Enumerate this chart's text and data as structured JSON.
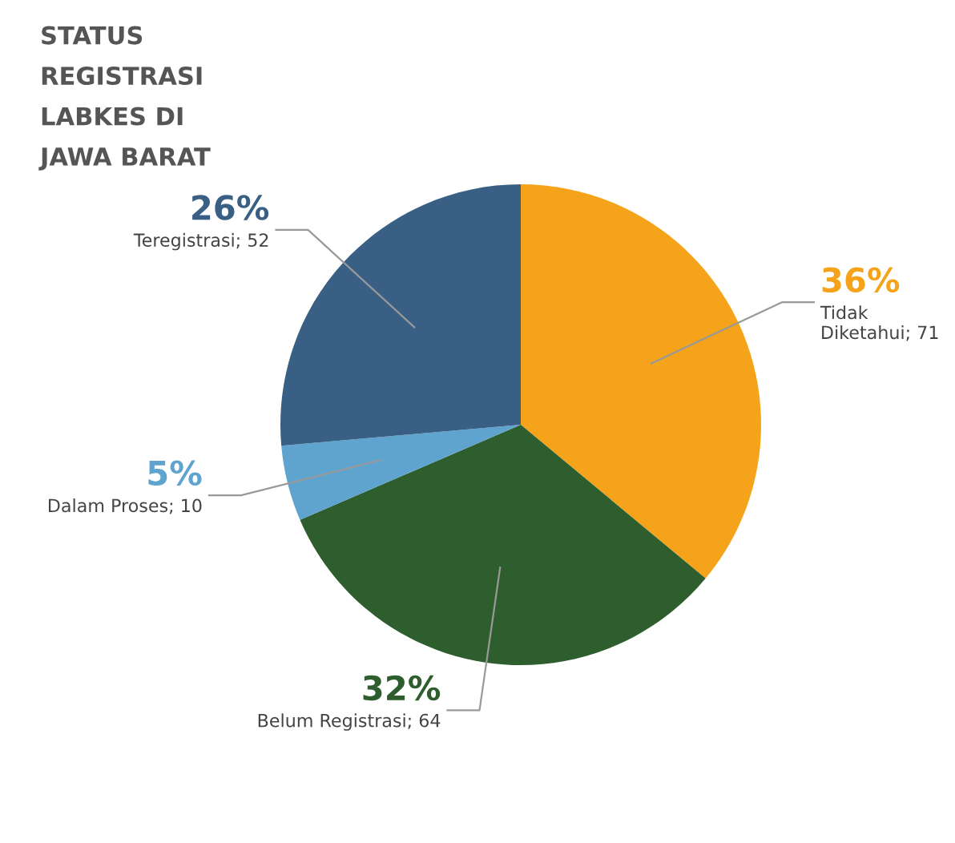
{
  "chart_data": {
    "type": "pie",
    "title": "STATUS\nREGISTRASI\nLABKES DI\nJAWA BARAT",
    "categories": [
      "Tidak Diketahui; 71",
      "Belum Registrasi; 64",
      "Dalam Proses; 10",
      "Teregistrasi; 52"
    ],
    "values": [
      71,
      64,
      10,
      52
    ],
    "colors": [
      "#f5a31a",
      "#2e5e2e",
      "#5fa3cf",
      "#3a5f85"
    ],
    "annotations": [
      {
        "text": "36%",
        "x": "Tidak Diketahui; 71"
      },
      {
        "text": "32%",
        "x": "Belum Registrasi; 64"
      },
      {
        "text": "5%",
        "x": "Dalam Proses; 10"
      },
      {
        "text": "26%",
        "x": "Teregistrasi; 52"
      }
    ],
    "legend": false
  }
}
